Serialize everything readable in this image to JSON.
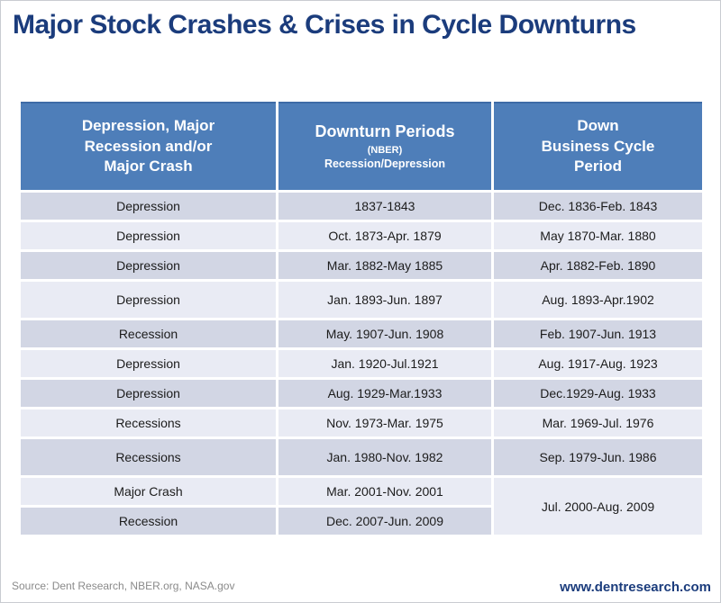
{
  "chart_data": {
    "type": "table",
    "title": "Major Stock Crashes & Crises in Cycle Downturns",
    "columns": [
      {
        "header": "Depression, Major\nRecession and/or\nMajor Crash"
      },
      {
        "header": "Downturn Periods",
        "sub1": "(NBER)",
        "sub2": "Recession/Depression"
      },
      {
        "header": "Down\nBusiness Cycle\nPeriod"
      }
    ],
    "rows": [
      [
        "Depression",
        "1837-1843",
        "Dec. 1836-Feb. 1843"
      ],
      [
        "Depression",
        "Oct. 1873-Apr. 1879",
        "May 1870-Mar. 1880"
      ],
      [
        "Depression",
        "Mar. 1882-May 1885",
        "Apr. 1882-Feb. 1890"
      ],
      [
        "Depression",
        "Jan. 1893-Jun. 1897",
        "Aug. 1893-Apr.1902"
      ],
      [
        "Recession",
        "May. 1907-Jun. 1908",
        "Feb. 1907-Jun. 1913"
      ],
      [
        "Depression",
        "Jan. 1920-Jul.1921",
        "Aug. 1917-Aug. 1923"
      ],
      [
        "Depression",
        "Aug. 1929-Mar.1933",
        "Dec.1929-Aug. 1933"
      ],
      [
        "Recessions",
        "Nov. 1973-Mar. 1975",
        "Mar. 1969-Jul. 1976"
      ],
      [
        "Recessions",
        "Jan. 1980-Nov. 1982",
        "Sep. 1979-Jun. 1986"
      ],
      [
        "Major Crash",
        "Mar. 2001-Nov. 2001",
        "Jul. 2000-Aug. 2009"
      ],
      [
        "Recession",
        "Dec. 2007-Jun. 2009",
        "Jul. 2000-Aug. 2009"
      ]
    ],
    "merged_cell": {
      "column": "Down Business Cycle Period",
      "spans_rows": [
        10,
        11
      ],
      "value": "Jul. 2000-Aug. 2009"
    }
  },
  "footer": {
    "source": "Source: Dent Research, NBER.org, NASA.gov",
    "website": "www.dentresearch.com"
  },
  "colors": {
    "header_bg": "#4e7eb9",
    "header_border_top": "#3d6ba6",
    "row_dark": "#d2d6e4",
    "row_light": "#e9ebf4",
    "title_navy": "#1b3c7c",
    "source_gray": "#8a8a8a"
  }
}
